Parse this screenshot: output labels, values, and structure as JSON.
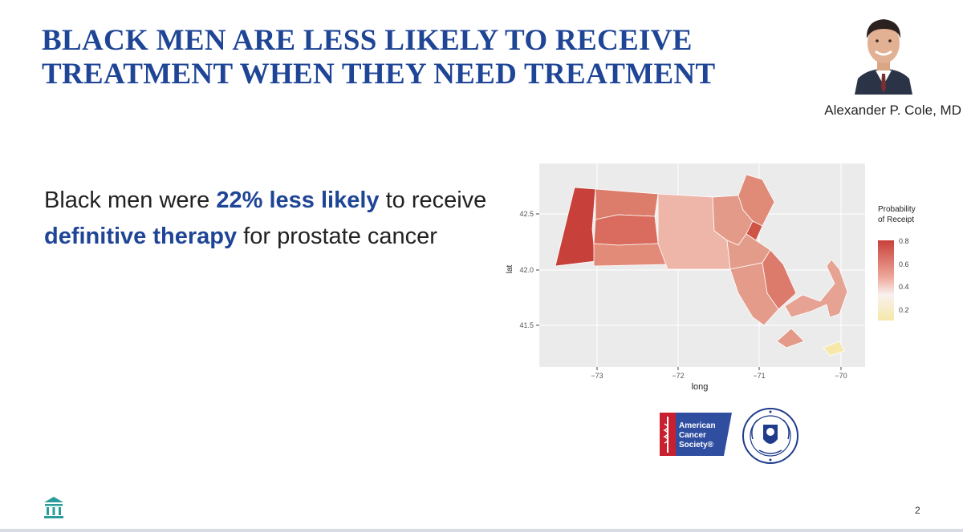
{
  "slide": {
    "title_line1": "BLACK MEN ARE LESS LIKELY TO RECEIVE",
    "title_line2": "TREATMENT WHEN THEY NEED TREATMENT",
    "speaker_name": "Alexander P. Cole, MD",
    "page_number": "2"
  },
  "body": {
    "prefix": "Black men were ",
    "highlight1": "22% less likely",
    "middle": " to receive ",
    "highlight2": "definitive therapy",
    "suffix": " for prostate cancer"
  },
  "map": {
    "x_label": "long",
    "y_label": "lat",
    "x_ticks": [
      "−73",
      "−72",
      "−71",
      "−70"
    ],
    "y_ticks": [
      "42.5",
      "42.0",
      "41.5"
    ],
    "legend_title_line1": "Probability",
    "legend_title_line2": "of Receipt",
    "legend_ticks": [
      "0.8",
      "0.6",
      "0.4",
      "0.2"
    ],
    "colors": {
      "high": "#c8403a",
      "mid": "#f7f0ee",
      "low": "#f6e8a8",
      "panel": "#ebebeb"
    }
  },
  "logos": {
    "acs_line1": "American",
    "acs_line2": "Cancer",
    "acs_line3": "Society®"
  }
}
